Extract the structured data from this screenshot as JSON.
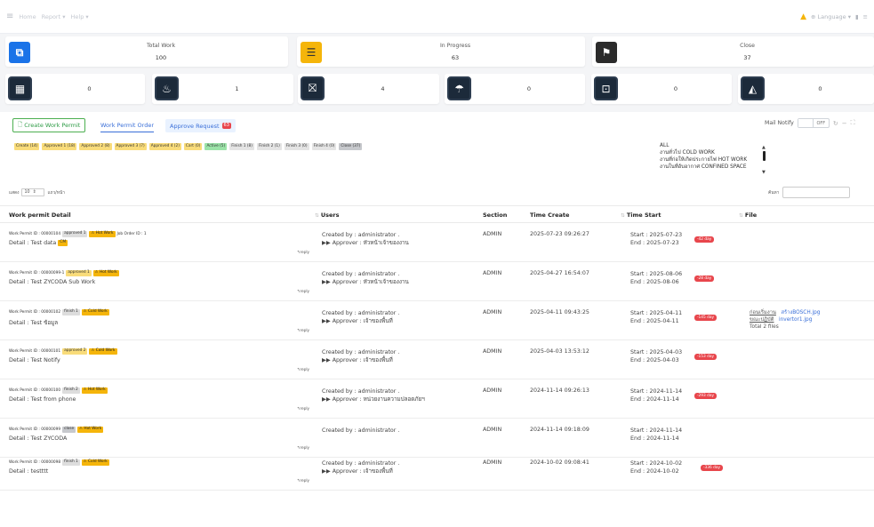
{
  "nav": {
    "menu": [
      "Home",
      "Report",
      "Help"
    ],
    "language": "Language"
  },
  "stats": [
    {
      "title": "Total Work",
      "value": "100",
      "color": "#1a73e8"
    },
    {
      "title": "In Progress",
      "value": "63",
      "color": "#f5b50a"
    },
    {
      "title": "Close",
      "value": "37",
      "color": "#2b2b2b"
    }
  ],
  "mini_stats": [
    "0",
    "1",
    "4",
    "0",
    "0",
    "0"
  ],
  "toolbar": {
    "create_label": "Create Work Permit",
    "tab_order": "Work Permit Order",
    "tab_approve": "Approve Request",
    "approve_count": "63",
    "mail_notify": "Mail Notify",
    "toggle_state": "OFF"
  },
  "status_chips": [
    "Create (14)",
    "Approved 1 (18)",
    "Approved 2 (8)",
    "Approved 3 (7)",
    "Approved 4 (2)",
    "Cart (0)",
    "Active (5)",
    "Finish 1 (8)",
    "Finish 2 (1)",
    "Finish 3 (0)",
    "Finish 4 (0)",
    "Close (37)"
  ],
  "type_list": [
    "ALL",
    "งานทั่วไป COLD WORK",
    "งานที่ก่อให้เกิดประกายไฟ HOT WORK",
    "งานในที่อับอากาศ CONFINED SPACE"
  ],
  "table_controls": {
    "length_prefix": "แสดง",
    "length_value": "10",
    "length_suffix": "แถว/หน้า",
    "search_label": "ค้นหา"
  },
  "table": {
    "headers": [
      "Work permit Detail",
      "Users",
      "Section",
      "Time Create",
      "Time Start",
      "File"
    ],
    "reply_label": "reply",
    "rows": [
      {
        "wp_id": "Work Permit ID : 00000104",
        "status": "approved 1",
        "type": "Hot Work",
        "extra": "Job Order ID : 1",
        "detail": "Detail : Test data",
        "cm": "CM",
        "created": "Created by : administrator .",
        "approver": "Approver : หัวหน้าเจ้าของงาน",
        "section": "ADMIN",
        "time_create": "2025-07-23 09:26:27",
        "start": "Start : 2025-07-23",
        "end": "End : 2025-07-23",
        "days": "-42 day",
        "files": []
      },
      {
        "wp_id": "Work Permit ID : 00000099-1",
        "status": "approved 1",
        "type": "Hot Work",
        "extra": "",
        "detail": "Detail : Test ZYCODA Sub Work",
        "cm": "",
        "created": "Created by : administrator .",
        "approver": "Approver : หัวหน้าเจ้าของงาน",
        "section": "ADMIN",
        "time_create": "2025-04-27 16:54:07",
        "start": "Start : 2025-08-06",
        "end": "End : 2025-08-06",
        "days": "-28 day",
        "files": []
      },
      {
        "wp_id": "Work Permit ID : 00000102",
        "status": "finish 1",
        "type": "Cold Work",
        "extra": "",
        "detail": "Detail : Test ข้อมูล",
        "cm": "",
        "created": "Created by : administrator .",
        "approver": "Approver : เจ้าของพื้นที่",
        "section": "ADMIN",
        "time_create": "2025-04-11 09:43:25",
        "start": "Start : 2025-04-11",
        "end": "End : 2025-04-11",
        "days": "-145 day",
        "files": [
          {
            "label": "ก่อนเริ่มงาน",
            "name": "สร้างBOSCH.jpg"
          },
          {
            "label": "ขณะปฏิบัติ",
            "name": "invertor1.jpg"
          }
        ],
        "files_total": "Total 2 files"
      },
      {
        "wp_id": "Work Permit ID : 00000101",
        "status": "approved 2",
        "type": "Cold Work",
        "extra": "",
        "detail": "Detail : Test Notify",
        "cm": "",
        "created": "Created by : administrator .",
        "approver": "Approver : เจ้าของพื้นที่",
        "section": "ADMIN",
        "time_create": "2025-04-03 13:53:12",
        "start": "Start : 2025-04-03",
        "end": "End : 2025-04-03",
        "days": "-153 day",
        "files": []
      },
      {
        "wp_id": "Work Permit ID : 00000100",
        "status": "finish 2",
        "type": "Hot Work",
        "extra": "",
        "detail": "Detail : Test from phone",
        "cm": "",
        "created": "Created by : administrator .",
        "approver": "Approver : หน่วยงานความปลอดภัยฯ",
        "section": "ADMIN",
        "time_create": "2024-11-14 09:26:13",
        "start": "Start : 2024-11-14",
        "end": "End : 2024-11-14",
        "days": "-293 day",
        "files": []
      },
      {
        "wp_id": "Work Permit ID : 00000099",
        "status": "close",
        "type": "Hot Work",
        "extra": "",
        "detail": "Detail : Test ZYCODA",
        "cm": "",
        "created": "Created by : administrator .",
        "approver": "",
        "section": "ADMIN",
        "time_create": "2024-11-14 09:18:09",
        "start": "Start : 2024-11-14",
        "end": "End : 2024-11-14",
        "days": "",
        "files": []
      },
      {
        "wp_id": "Work Permit ID : 00000098",
        "status": "finish 1",
        "type": "Cold Work",
        "extra": "",
        "detail": "Detail : testttt",
        "cm": "",
        "created": "Created by : administrator .",
        "approver": "Approver : เจ้าของพื้นที่",
        "section": "ADMIN",
        "time_create": "2024-10-02 09:08:41",
        "start": "Start : 2024-10-02",
        "end": "End : 2024-10-02",
        "days": "-336 day",
        "files": []
      }
    ]
  }
}
